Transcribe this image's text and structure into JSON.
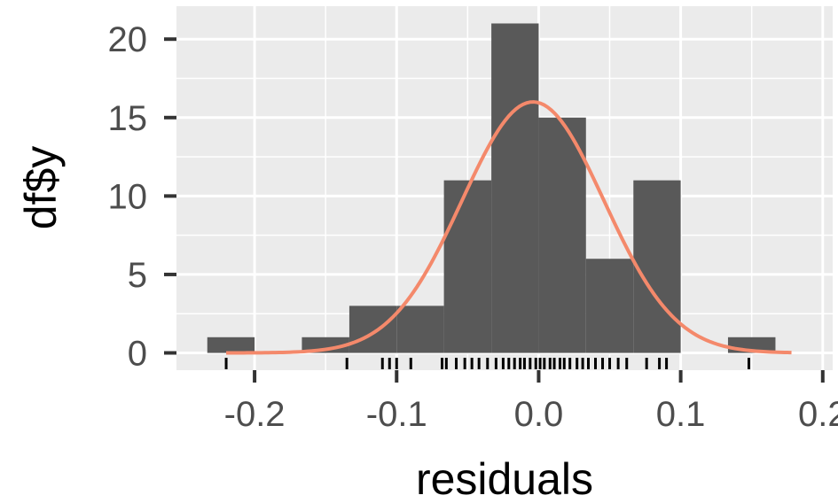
{
  "chart_data": {
    "type": "bar",
    "subtype": "histogram",
    "xlabel": "residuals",
    "ylabel": "df$y",
    "xlim": [
      -0.255,
      0.207
    ],
    "ylim": [
      -1.1,
      22.1
    ],
    "grid": true,
    "x_ticks": [
      {
        "value": -0.2,
        "label": "-0.2"
      },
      {
        "value": -0.1,
        "label": "-0.1"
      },
      {
        "value": 0.0,
        "label": "0.0"
      },
      {
        "value": 0.1,
        "label": "0.1"
      },
      {
        "value": 0.2,
        "label": "0.2"
      }
    ],
    "y_ticks": [
      {
        "value": 0,
        "label": "0"
      },
      {
        "value": 5,
        "label": "5"
      },
      {
        "value": 10,
        "label": "10"
      },
      {
        "value": 15,
        "label": "15"
      },
      {
        "value": 20,
        "label": "20"
      }
    ],
    "bins": [
      {
        "x0": -0.2333,
        "x1": -0.2,
        "count": 1
      },
      {
        "x0": -0.2,
        "x1": -0.1667,
        "count": 0
      },
      {
        "x0": -0.1667,
        "x1": -0.1333,
        "count": 1
      },
      {
        "x0": -0.1333,
        "x1": -0.1,
        "count": 3
      },
      {
        "x0": -0.1,
        "x1": -0.0667,
        "count": 3
      },
      {
        "x0": -0.0667,
        "x1": -0.0333,
        "count": 11
      },
      {
        "x0": -0.0333,
        "x1": 0.0,
        "count": 21
      },
      {
        "x0": 0.0,
        "x1": 0.0333,
        "count": 15
      },
      {
        "x0": 0.0333,
        "x1": 0.0667,
        "count": 6
      },
      {
        "x0": 0.0667,
        "x1": 0.1,
        "count": 11
      },
      {
        "x0": 0.1,
        "x1": 0.1333,
        "count": 0
      },
      {
        "x0": 0.1333,
        "x1": 0.1667,
        "count": 1
      }
    ],
    "density_curve": {
      "mean": -0.004,
      "sd": 0.05,
      "peak": 16,
      "x_range": [
        -0.22,
        0.178
      ]
    },
    "rug": [
      -0.22,
      -0.135,
      -0.11,
      -0.105,
      -0.1,
      -0.09,
      -0.068,
      -0.065,
      -0.058,
      -0.052,
      -0.047,
      -0.042,
      -0.036,
      -0.03,
      -0.025,
      -0.021,
      -0.017,
      -0.013,
      -0.01,
      -0.006,
      -0.002,
      0.001,
      0.004,
      0.008,
      0.011,
      0.015,
      0.018,
      0.022,
      0.027,
      0.031,
      0.035,
      0.04,
      0.045,
      0.05,
      0.056,
      0.062,
      0.076,
      0.085,
      0.09,
      0.148
    ],
    "colors": {
      "panel_background": "#ebebeb",
      "grid": "#ffffff",
      "bars": "#595959",
      "curve": "#f4896b",
      "rug": "#000000",
      "tick_labels": "#4d4d4d",
      "ticks": "#333333"
    }
  }
}
